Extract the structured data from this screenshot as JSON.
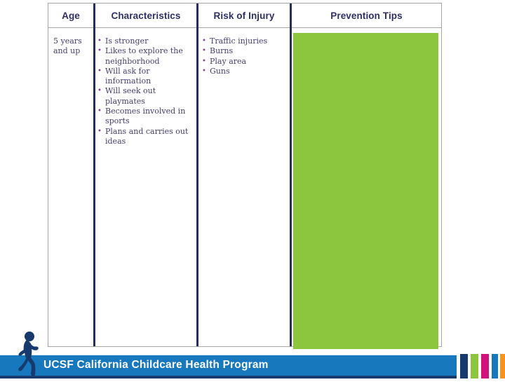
{
  "slide": {
    "table": {
      "headers": [
        "Age",
        "Characteristics",
        "Risk of Injury",
        "Prevention Tips"
      ],
      "bullet_char": "•",
      "row": {
        "age": "5 years and up",
        "characteristics": [
          "Is stronger",
          "Likes to explore the neighborhood",
          "Will ask for information",
          "Will seek out playmates",
          "Becomes involved in sports",
          "Plans and carries out ideas"
        ],
        "risk_of_injury": [
          "Traffic injuries",
          "Burns",
          "Play area",
          "Guns"
        ],
        "prevention_tips": ""
      }
    },
    "footer": {
      "brand": "UCSF California Childcare Health Program"
    },
    "icons": {
      "child": "running-child-silhouette"
    },
    "colors": {
      "header_text": "#2e2f6a",
      "body_text": "#45406f",
      "bullet": "#8a3d8f",
      "column_divider": "#272e5e",
      "table_border": "#a6a6a6",
      "prevention_highlight": "#8cc63f",
      "footer_blue": "#1878bd",
      "footer_navy": "#16396e",
      "accent_bars": [
        "#16396e",
        "#8cc63f",
        "#d2117d",
        "#1878bd",
        "#f8941d"
      ]
    }
  }
}
